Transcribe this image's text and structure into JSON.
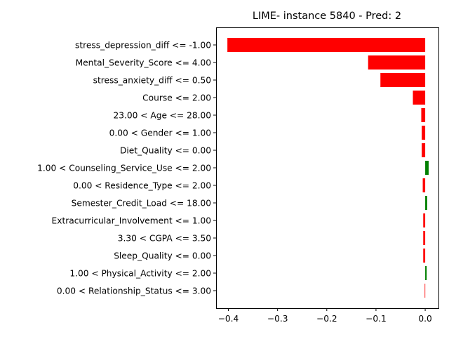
{
  "chart_data": {
    "type": "bar",
    "orientation": "horizontal",
    "title": "LIME- instance 5840 - Pred: 2",
    "xlabel": "",
    "ylabel": "",
    "xlim": [
      -0.425,
      0.027
    ],
    "xticks": [
      -0.4,
      -0.3,
      -0.2,
      -0.1,
      0.0
    ],
    "xtick_labels": [
      "−0.4",
      "−0.3",
      "−0.2",
      "−0.1",
      "0.0"
    ],
    "grid": false,
    "legend": "none",
    "colors": {
      "negative": "#ff0000",
      "positive": "#008000"
    },
    "categories": [
      "stress_depression_diff <= -1.00",
      "Mental_Severity_Score <= 4.00",
      "stress_anxiety_diff <= 0.50",
      "Course <= 2.00",
      "23.00 < Age <= 28.00",
      "0.00 < Gender <= 1.00",
      "Diet_Quality <= 0.00",
      "1.00 < Counseling_Service_Use <= 2.00",
      "0.00 < Residence_Type <= 2.00",
      "Semester_Credit_Load <= 18.00",
      "Extracurricular_Involvement <= 1.00",
      "3.30 < CGPA <= 3.50",
      "Sleep_Quality <= 0.00",
      "1.00 < Physical_Activity <= 2.00",
      "0.00 < Relationship_Status <= 3.00"
    ],
    "values": [
      -0.402,
      -0.116,
      -0.091,
      -0.025,
      -0.008,
      -0.007,
      -0.007,
      0.007,
      -0.005,
      0.004,
      -0.004,
      -0.004,
      -0.004,
      0.003,
      -0.001
    ]
  }
}
